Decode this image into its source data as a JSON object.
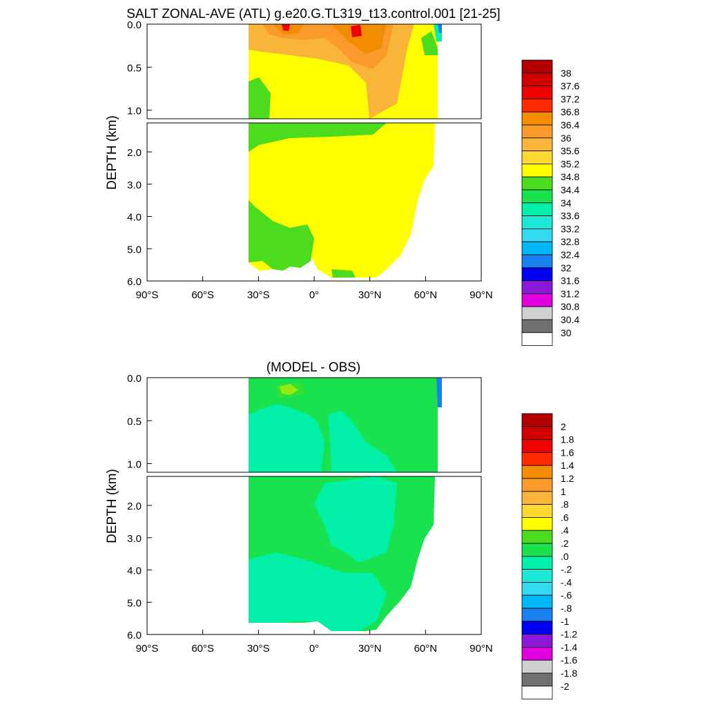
{
  "chart_data": [
    {
      "type": "heatmap",
      "title": "SALT ZONAL-AVE (ATL) g.e20.G.TL319_t13.control.001 [21-25]",
      "ylabel": "DEPTH (km)",
      "xlabel": "",
      "x_ticks": [
        "90°S",
        "60°S",
        "30°S",
        "0°",
        "30°N",
        "60°N",
        "90°N"
      ],
      "x_tick_values": [
        -90,
        -60,
        -30,
        0,
        30,
        60,
        90
      ],
      "y_ticks_upper": [
        "0.0",
        "0.5",
        "1.0"
      ],
      "y_ticks_upper_values": [
        0,
        0.5,
        1.0
      ],
      "y_ticks_lower": [
        "2.0",
        "3.0",
        "4.0",
        "5.0",
        "6.0"
      ],
      "y_ticks_lower_values": [
        2,
        3,
        4,
        5,
        6
      ],
      "xlim": [
        -90,
        90
      ],
      "ylim_upper_km": [
        0,
        1.1
      ],
      "ylim_lower_km": [
        1.1,
        6.0
      ],
      "colorbar_labels": [
        "38",
        "37.6",
        "37.2",
        "36.8",
        "36.4",
        "36",
        "35.6",
        "35.2",
        "34.8",
        "34.4",
        "34",
        "33.6",
        "33.2",
        "32.8",
        "32.4",
        "32",
        "31.6",
        "31.2",
        "30.8",
        "30.4",
        "30"
      ],
      "colorbar_colors": [
        "#b20000",
        "#d00000",
        "#f00000",
        "#ff2a00",
        "#f28c00",
        "#f99a2b",
        "#f9b43a",
        "#ffd832",
        "#ffff00",
        "#4ddc1d",
        "#18e34e",
        "#00f0a8",
        "#1ce8d6",
        "#35d8f2",
        "#00b8f5",
        "#1a80f0",
        "#0000f0",
        "#8a18d8",
        "#e000e0",
        "#d0d0d0",
        "#707070",
        "#ffffff"
      ]
    },
    {
      "type": "heatmap",
      "title": "(MODEL - OBS)",
      "ylabel": "DEPTH (km)",
      "xlabel": "",
      "x_ticks": [
        "90°S",
        "60°S",
        "30°S",
        "0°",
        "30°N",
        "60°N",
        "90°N"
      ],
      "x_tick_values": [
        -90,
        -60,
        -30,
        0,
        30,
        60,
        90
      ],
      "y_ticks_upper": [
        "0.0",
        "0.5",
        "1.0"
      ],
      "y_ticks_upper_values": [
        0,
        0.5,
        1.0
      ],
      "y_ticks_lower": [
        "2.0",
        "3.0",
        "4.0",
        "5.0",
        "6.0"
      ],
      "y_ticks_lower_values": [
        2,
        3,
        4,
        5,
        6
      ],
      "xlim": [
        -90,
        90
      ],
      "ylim_upper_km": [
        0,
        1.1
      ],
      "ylim_lower_km": [
        1.1,
        6.0
      ],
      "colorbar_labels": [
        "2",
        "1.8",
        "1.6",
        "1.4",
        "1.2",
        "1",
        ".8",
        ".6",
        ".4",
        ".2",
        ".0",
        "-.2",
        "-.4",
        "-.6",
        "-.8",
        "-1",
        "-1.2",
        "-1.4",
        "-1.6",
        "-1.8",
        "-2"
      ],
      "colorbar_colors": [
        "#b20000",
        "#d00000",
        "#f00000",
        "#ff2a00",
        "#f28c00",
        "#f99a2b",
        "#f9b43a",
        "#ffd832",
        "#ffff00",
        "#4ddc1d",
        "#18e34e",
        "#00f0a8",
        "#1ce8d6",
        "#35d8f2",
        "#00b8f5",
        "#1a80f0",
        "#0000f0",
        "#8a18d8",
        "#e000e0",
        "#d0d0d0",
        "#707070",
        "#ffffff"
      ]
    }
  ]
}
